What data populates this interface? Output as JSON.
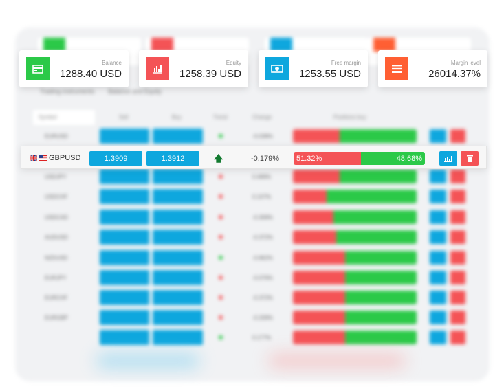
{
  "colors": {
    "green": "#2bc948",
    "red": "#f45356",
    "blue": "#0ea7de",
    "orange": "#ff5f33"
  },
  "cards": [
    {
      "label": "Balance",
      "value": "1288.40 USD",
      "icon": "credit-card-icon",
      "color": "#2bc948"
    },
    {
      "label": "Equity",
      "value": "1258.39 USD",
      "icon": "bar-chart-icon",
      "color": "#f45356"
    },
    {
      "label": "Free margin",
      "value": "1253.55 USD",
      "icon": "banknote-icon",
      "color": "#0ea7de"
    },
    {
      "label": "Margin level",
      "value": "26014.37%",
      "icon": "menu-icon",
      "color": "#ff5f33"
    }
  ],
  "focused_row": {
    "symbol": "GBPUSD",
    "flags": [
      "uk-flag",
      "us-flag"
    ],
    "sell": "1.3909",
    "buy": "1.3912",
    "trend": "up",
    "trend_glyph": "🡅",
    "change": "-0.179%",
    "sell_pct": "51.32%",
    "buy_pct": "48.68%",
    "sell_fraction": 51.32,
    "chart_icon": "bar-chart-icon",
    "delete_icon": "trash-icon"
  },
  "background_table": {
    "tabs": [
      "Trading instruments",
      "Balance and Equity"
    ],
    "headers": [
      "Symbol",
      "Sell",
      "Buy",
      "Trend",
      "Change",
      "Positions buy"
    ],
    "rows": [
      {
        "symbol": "EURUSD",
        "change": "-0.038%",
        "sell_pct": 38,
        "trend": "up"
      },
      {
        "symbol": "USDJPY",
        "change": "0.489%",
        "sell_pct": 38,
        "trend": "down"
      },
      {
        "symbol": "USDCHF",
        "change": "0.107%",
        "sell_pct": 27,
        "trend": "down"
      },
      {
        "symbol": "USDCAD",
        "change": "-0.309%",
        "sell_pct": 33,
        "trend": "down"
      },
      {
        "symbol": "AUDUSD",
        "change": "-0.372%",
        "sell_pct": 35,
        "trend": "down"
      },
      {
        "symbol": "NZDUSD",
        "change": "-0.862%",
        "sell_pct": 42,
        "trend": "up"
      },
      {
        "symbol": "EURJPY",
        "change": "-0.076%",
        "sell_pct": 42,
        "trend": "down"
      },
      {
        "symbol": "EURCHF",
        "change": "-0.372%",
        "sell_pct": 42,
        "trend": "down"
      },
      {
        "symbol": "EURGBP",
        "change": "-0.209%",
        "sell_pct": 42,
        "trend": "down"
      },
      {
        "symbol": "",
        "change": "0.177%",
        "sell_pct": 42,
        "trend": "up"
      }
    ]
  }
}
